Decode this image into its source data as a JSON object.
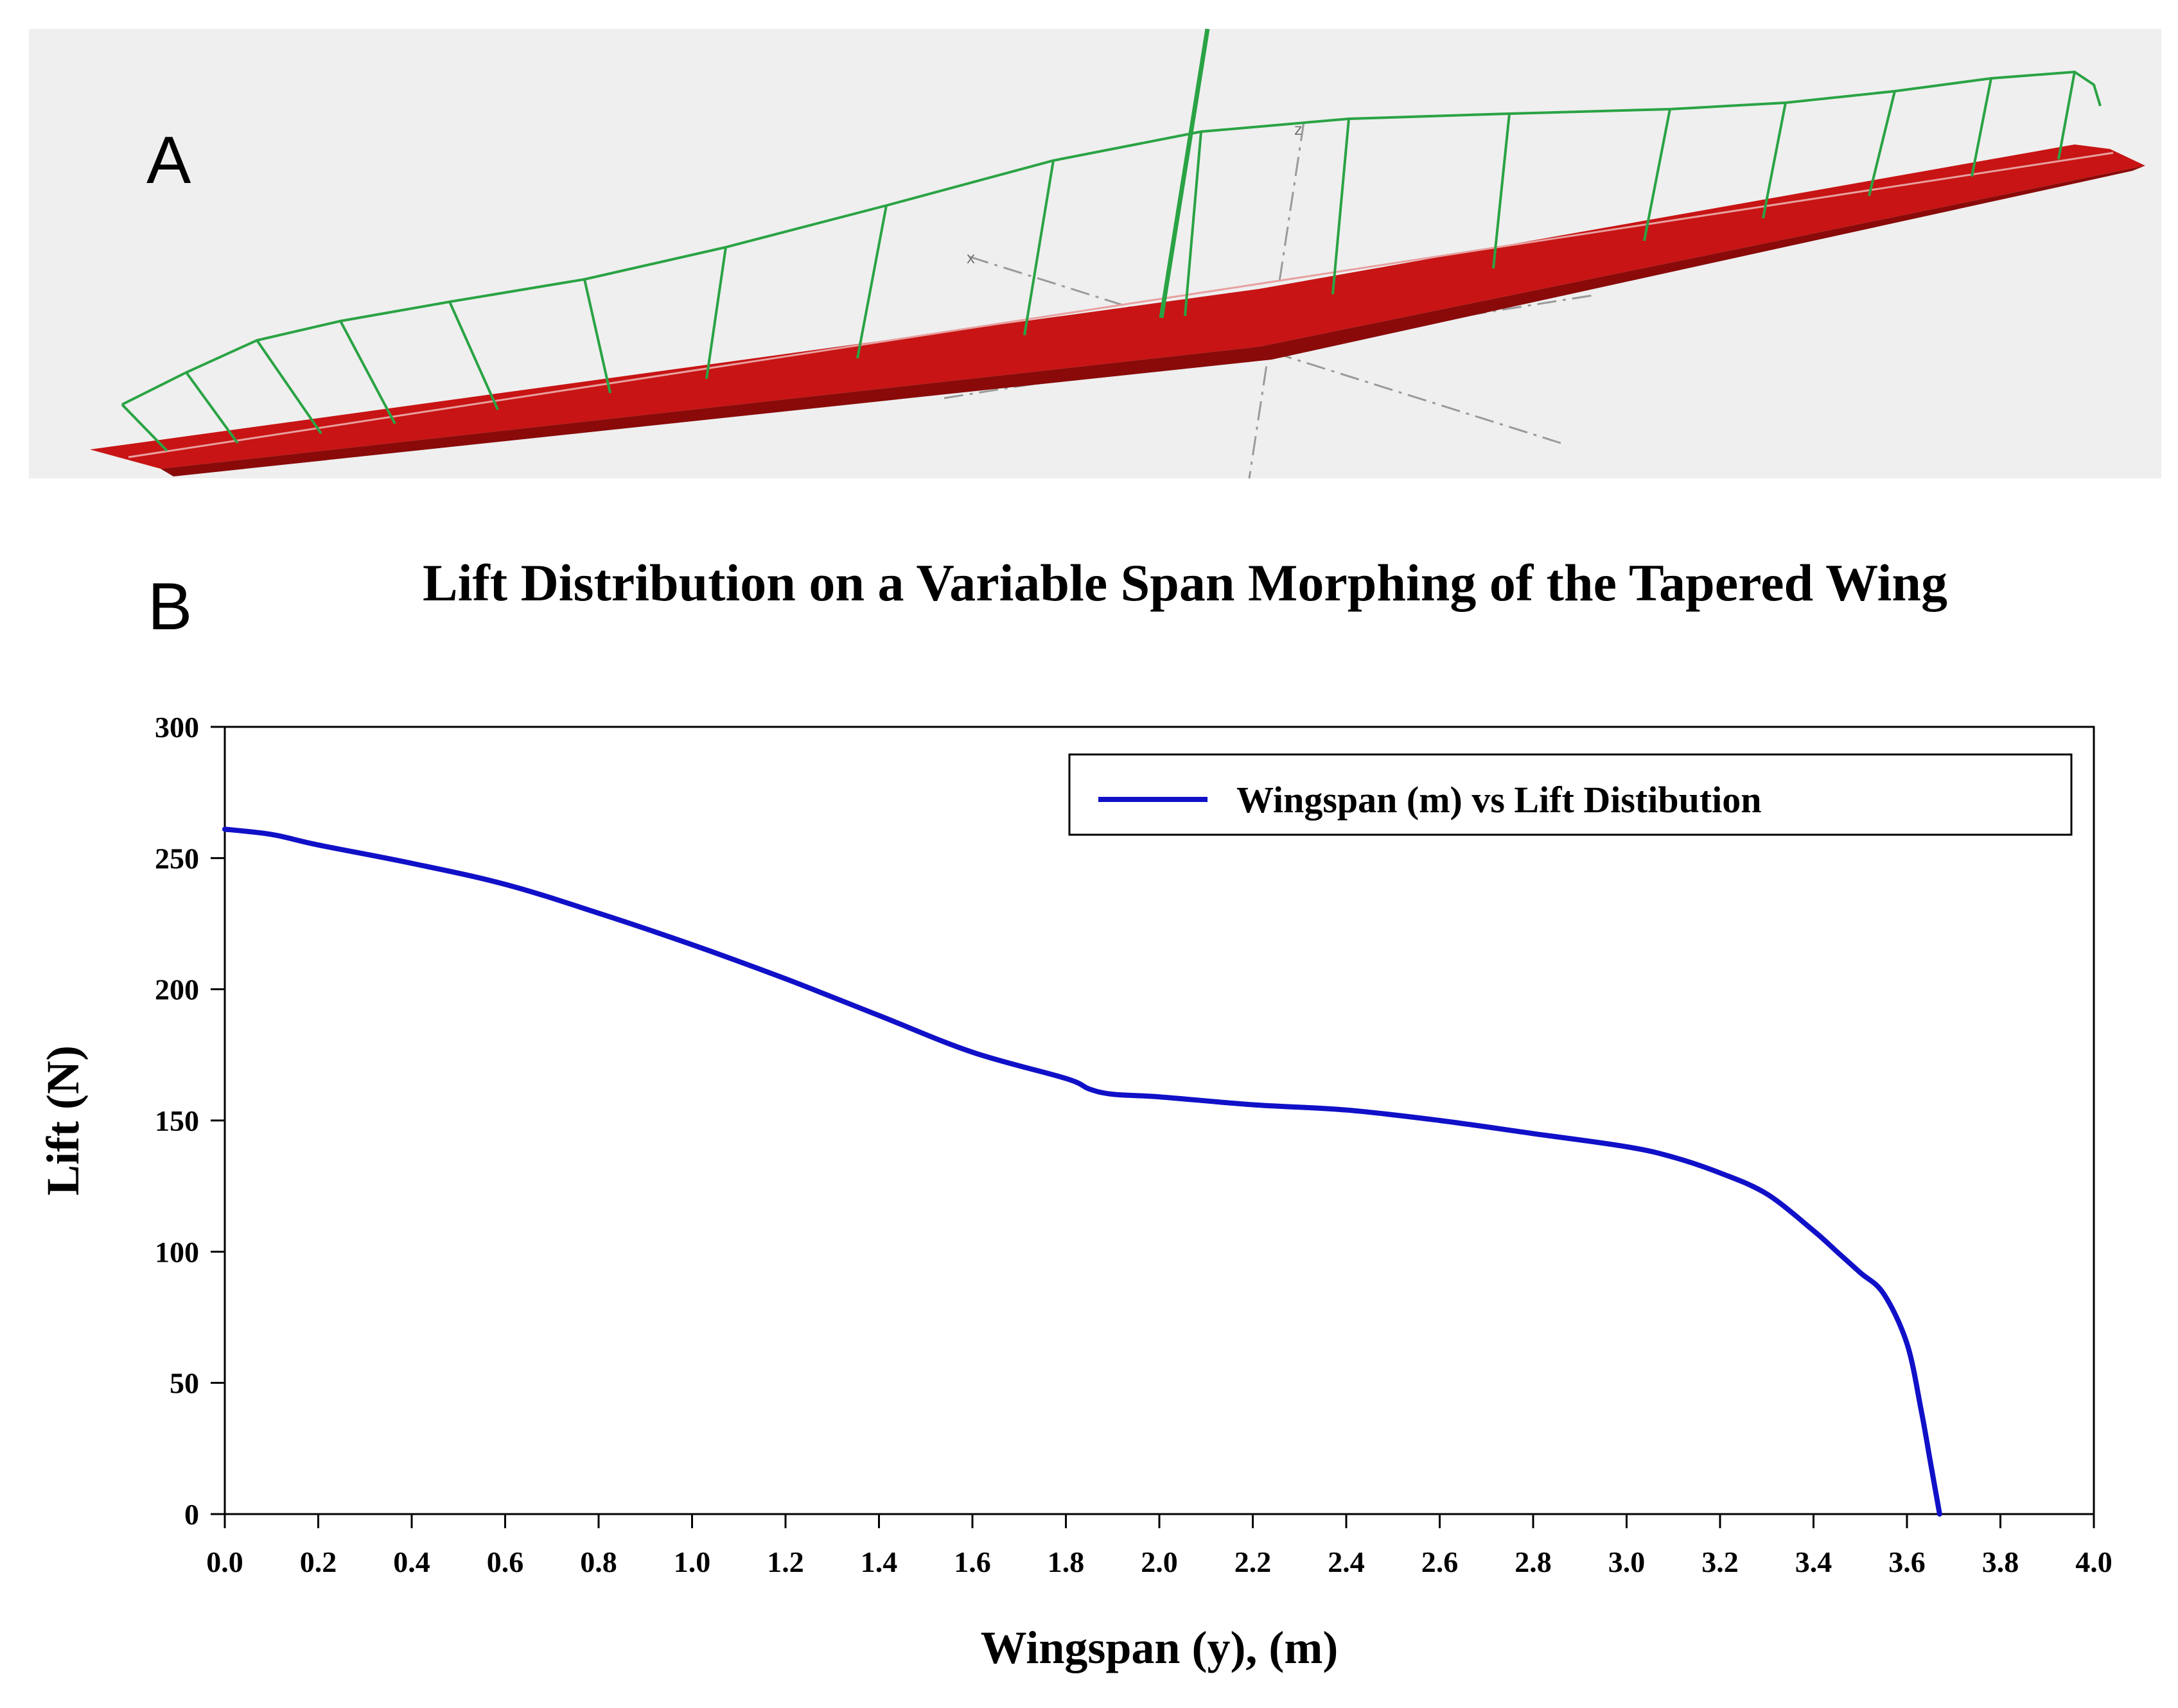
{
  "panel_a": {
    "letter": "A",
    "colors": {
      "background": "#efefef",
      "wing": "#c81414",
      "wing_dark": "#8a0a0a",
      "lift_lines": "#2aa344",
      "axes": "#9a9a9a"
    }
  },
  "panel_b": {
    "letter": "B",
    "colors": {
      "series": "#1010c8",
      "frame": "#000000"
    }
  },
  "chart_data": {
    "type": "line",
    "title": "Lift Distribution on a Variable Span Morphing of the Tapered Wing",
    "xlabel": "Wingspan (y), (m)",
    "ylabel": "Lift (N)",
    "xlim": [
      0.0,
      4.0
    ],
    "ylim": [
      0,
      300
    ],
    "xticks": [
      "0.0",
      "0.2",
      "0.4",
      "0.6",
      "0.8",
      "1.0",
      "1.2",
      "1.4",
      "1.6",
      "1.8",
      "2.0",
      "2.2",
      "2.4",
      "2.6",
      "2.8",
      "3.0",
      "3.2",
      "3.4",
      "3.6",
      "3.8",
      "4.0"
    ],
    "yticks": [
      "0",
      "50",
      "100",
      "150",
      "200",
      "250",
      "300"
    ],
    "grid": false,
    "legend_position": "top-right",
    "series": [
      {
        "name": "Wingspan (m) vs Lift Distibution",
        "x": [
          0.0,
          0.1,
          0.2,
          0.4,
          0.6,
          0.8,
          1.0,
          1.2,
          1.4,
          1.6,
          1.8,
          1.85,
          1.9,
          2.0,
          2.2,
          2.4,
          2.6,
          2.8,
          3.0,
          3.1,
          3.2,
          3.3,
          3.4,
          3.45,
          3.5,
          3.55,
          3.6,
          3.63,
          3.65,
          3.67
        ],
        "y": [
          261,
          259,
          255,
          248,
          240,
          229,
          217,
          204,
          190,
          176,
          166,
          162,
          160,
          159,
          156,
          154,
          150,
          145,
          140,
          136,
          130,
          122,
          108,
          100,
          92,
          84,
          65,
          40,
          20,
          0
        ]
      }
    ]
  }
}
